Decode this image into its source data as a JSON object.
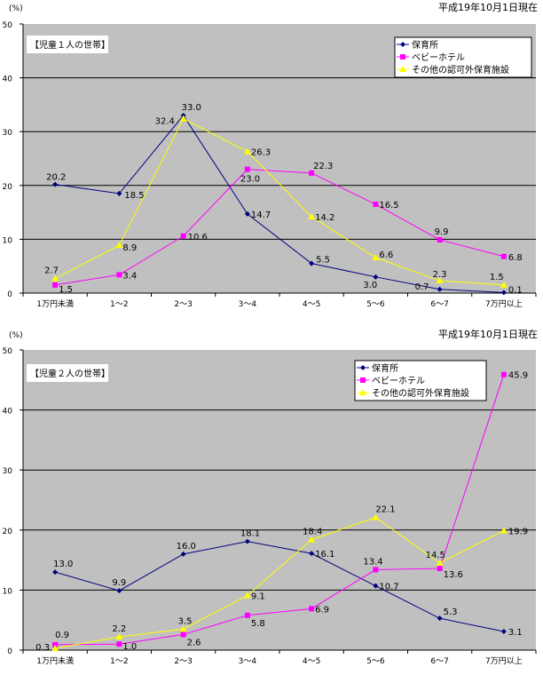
{
  "chart_data": [
    {
      "type": "line",
      "title": "【児童１人の世帯】",
      "unit_label": "(%)",
      "date_note": "平成19年10月1日現在",
      "categories": [
        "1万円未満",
        "1～2",
        "2～3",
        "3～4",
        "4～5",
        "5～6",
        "6～7",
        "7万円以上"
      ],
      "ylim": [
        0,
        50
      ],
      "yticks": [
        0,
        10,
        20,
        30,
        40,
        50
      ],
      "grid": true,
      "legend_position": "top-right",
      "series": [
        {
          "name": "保育所",
          "color": "#000080",
          "marker": "diamond",
          "values": [
            20.2,
            18.5,
            33.0,
            14.7,
            5.5,
            3.0,
            0.7,
            0.1
          ]
        },
        {
          "name": "ベビーホテル",
          "color": "#FF00FF",
          "marker": "square",
          "values": [
            1.5,
            3.4,
            10.6,
            23.0,
            22.3,
            16.5,
            9.9,
            6.8
          ]
        },
        {
          "name": "その他の認可外保育施設",
          "color": "#FFFF00",
          "marker": "triangle",
          "values": [
            2.7,
            8.9,
            32.4,
            26.3,
            14.2,
            6.6,
            2.3,
            1.5
          ]
        }
      ]
    },
    {
      "type": "line",
      "title": "【児童２人の世帯】",
      "unit_label": "(%)",
      "date_note": "平成19年10月1日現在",
      "categories": [
        "1万円未満",
        "1～2",
        "2～3",
        "3～4",
        "4～5",
        "5～6",
        "6～7",
        "7万円以上"
      ],
      "ylim": [
        0,
        50
      ],
      "yticks": [
        0,
        10,
        20,
        30,
        40,
        50
      ],
      "grid": true,
      "legend_position": "top-right",
      "series": [
        {
          "name": "保育所",
          "color": "#000080",
          "marker": "diamond",
          "values": [
            13.0,
            9.9,
            16.0,
            18.1,
            16.1,
            10.7,
            5.3,
            3.1
          ]
        },
        {
          "name": "ベビーホテル",
          "color": "#FF00FF",
          "marker": "square",
          "values": [
            0.9,
            1.0,
            2.6,
            5.8,
            6.9,
            13.4,
            13.6,
            45.9
          ]
        },
        {
          "name": "その他の認可外保育施設",
          "color": "#FFFF00",
          "marker": "triangle",
          "values": [
            0.3,
            2.2,
            3.5,
            9.1,
            18.4,
            22.1,
            14.5,
            19.9
          ]
        }
      ]
    }
  ]
}
